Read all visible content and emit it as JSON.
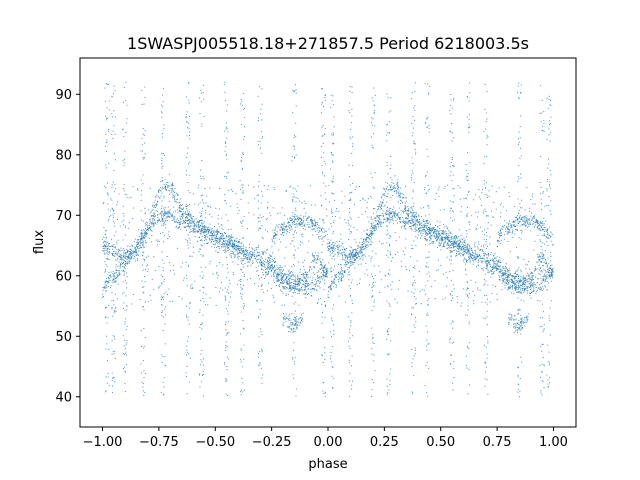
{
  "chart_data": {
    "type": "scatter",
    "title": "1SWASPJ005518.18+271857.5 Period 6218003.5s",
    "xlabel": "phase",
    "ylabel": "flux",
    "xlim": [
      -1.1,
      1.1
    ],
    "ylim": [
      35,
      96
    ],
    "xticks": [
      -1.0,
      -0.75,
      -0.5,
      -0.25,
      0.0,
      0.25,
      0.5,
      0.75,
      1.0
    ],
    "xtick_labels": [
      "−1.00",
      "−0.75",
      "−0.50",
      "−0.25",
      "0.00",
      "0.25",
      "0.50",
      "0.75",
      "1.00"
    ],
    "yticks": [
      40,
      50,
      60,
      70,
      80,
      90
    ],
    "ytick_labels": [
      "40",
      "50",
      "60",
      "70",
      "80",
      "90"
    ],
    "grid": false,
    "legend": "none",
    "marker_color": "#1f77b4",
    "series": [
      {
        "values_note": "",
        "tracks": [
          {
            "phase": [
              0.0,
              0.05,
              0.1,
              0.15,
              0.2,
              0.25,
              0.3,
              0.35,
              0.4,
              0.45,
              0.5
            ],
            "flux": [
              58,
              60,
              62,
              65,
              68,
              70,
              70,
              69,
              68,
              67,
              66
            ]
          },
          {
            "phase": [
              0.0,
              0.05,
              0.1,
              0.15,
              0.2,
              0.25,
              0.3,
              0.35,
              0.4,
              0.45,
              0.5
            ],
            "flux": [
              65,
              64,
              63,
              64,
              67,
              74,
              75,
              71,
              69,
              68,
              67
            ]
          },
          {
            "phase": [
              0.5,
              0.55,
              0.6,
              0.65,
              0.7,
              0.75,
              0.8,
              0.85,
              0.9,
              0.95,
              1.0
            ],
            "flux": [
              66,
              65,
              64,
              63,
              62,
              61,
              59,
              58,
              60,
              63,
              60
            ]
          },
          {
            "phase": [
              0.5,
              0.55,
              0.6,
              0.65,
              0.7,
              0.75,
              0.8,
              0.85,
              0.9,
              0.95,
              1.0
            ],
            "flux": [
              67,
              66,
              65,
              64,
              63,
              62,
              60,
              59,
              58,
              59,
              61
            ]
          },
          {
            "phase": [
              0.75,
              0.8,
              0.85,
              0.9,
              0.95,
              1.0
            ],
            "flux": [
              66,
              68,
              69,
              69,
              68,
              66
            ]
          },
          {
            "phase": [
              0.8,
              0.83,
              0.86,
              0.89
            ],
            "flux": [
              53,
              52,
              52,
              53
            ]
          }
        ]
      }
    ]
  }
}
